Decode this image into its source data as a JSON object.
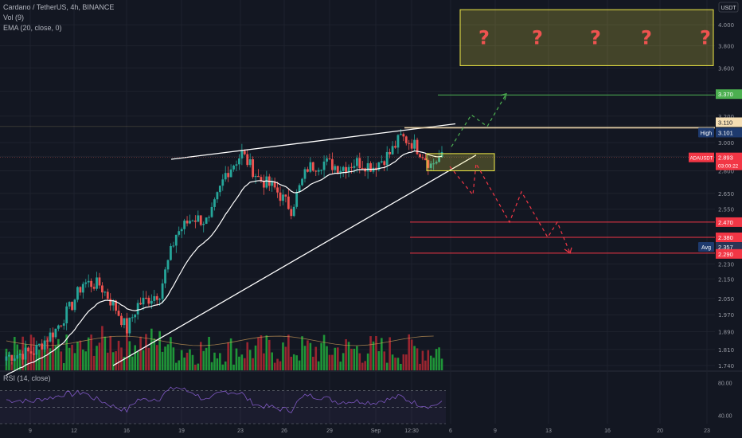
{
  "header": {
    "title": "Cardano / TetherUS, 4h, BINANCE",
    "vol": "Vol (9)",
    "ema": "EMA (20, close, 0)",
    "rsi": "RSI (14, close)"
  },
  "colors": {
    "background": "#131722",
    "up": "#26a69a",
    "down": "#ef5350",
    "vol_up": "#22ab3c",
    "vol_down": "#b22833",
    "grid": "#1e222d",
    "target_zone": "#f0ea46",
    "rsi_line": "#7e57c2"
  },
  "chart_data": {
    "type": "candlestick",
    "symbol": "ADAUSDT",
    "y_scale": "log",
    "ylim": [
      1.72,
      4.2
    ],
    "y_unit": "USDT",
    "y_ticks": [
      "4.000",
      "3.800",
      "3.600",
      "3.400",
      "3.200",
      "3.000",
      "2.900",
      "2.800",
      "2.650",
      "2.550",
      "2.470",
      "2.380",
      "2.290",
      "2.230",
      "2.150",
      "2.050",
      "1.970",
      "1.890",
      "1.810",
      "1.740"
    ],
    "x_ticks": [
      "9",
      "12",
      "16",
      "19",
      "23",
      "26",
      "29",
      "Sep",
      "12:30",
      "6",
      "9",
      "13",
      "16",
      "20",
      "23"
    ],
    "last_price": {
      "label": "ADAUSDT",
      "value": "2.893",
      "countdown": "03:00:22"
    },
    "levels": [
      {
        "label": "",
        "value": "3.370",
        "color": "#4caf50"
      },
      {
        "label": "",
        "value": "3.110",
        "color": "#f0e0a0"
      },
      {
        "label": "High",
        "value": "3.101",
        "color": "#2962ff"
      },
      {
        "label": "",
        "value": "2.470",
        "color": "#f23645"
      },
      {
        "label": "",
        "value": "2.380",
        "color": "#f23645"
      },
      {
        "label": "Avg",
        "value": "2.357",
        "color": "#2a3556"
      },
      {
        "label": "",
        "value": "2.290",
        "color": "#f23645"
      }
    ],
    "target_zone": {
      "from": 3.62,
      "to": 4.15,
      "mark": "?",
      "count": 5
    },
    "consolidation_zone": {
      "from": 2.8,
      "to": 2.92
    },
    "price_path_anchors": [
      [
        0,
        1.78
      ],
      [
        10,
        1.8
      ],
      [
        18,
        1.9
      ],
      [
        24,
        2.02
      ],
      [
        28,
        2.13
      ],
      [
        34,
        2.12
      ],
      [
        40,
        2.0
      ],
      [
        44,
        1.9
      ],
      [
        48,
        2.02
      ],
      [
        56,
        2.08
      ],
      [
        62,
        2.4
      ],
      [
        68,
        2.5
      ],
      [
        74,
        2.47
      ],
      [
        80,
        2.78
      ],
      [
        86,
        2.92
      ],
      [
        92,
        2.75
      ],
      [
        98,
        2.68
      ],
      [
        104,
        2.55
      ],
      [
        110,
        2.82
      ],
      [
        116,
        2.86
      ],
      [
        122,
        2.82
      ],
      [
        128,
        2.86
      ],
      [
        134,
        2.83
      ],
      [
        140,
        2.92
      ],
      [
        144,
        3.04
      ],
      [
        148,
        3.0
      ],
      [
        152,
        2.92
      ],
      [
        155,
        2.84
      ],
      [
        158,
        2.89
      ]
    ],
    "rsi": {
      "ylim": [
        30,
        90
      ],
      "bands": [
        70,
        50,
        30
      ],
      "ticks": [
        "80.00",
        "40.00"
      ]
    }
  }
}
